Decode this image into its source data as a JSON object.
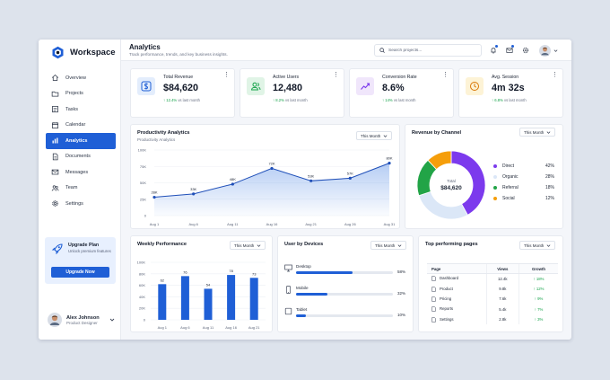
{
  "app": {
    "name": "Workspace"
  },
  "header": {
    "title": "Analytics",
    "subtitle": "Track performance, trends, and key business insights.",
    "search_placeholder": "Search projects..."
  },
  "sidebar": {
    "items": [
      {
        "label": "Overview",
        "icon": "home-icon"
      },
      {
        "label": "Projects",
        "icon": "folder-icon"
      },
      {
        "label": "Tasks",
        "icon": "checklist-icon"
      },
      {
        "label": "Calendar",
        "icon": "calendar-icon"
      },
      {
        "label": "Analytics",
        "icon": "bar-chart-icon",
        "active": true
      },
      {
        "label": "Documents",
        "icon": "document-icon"
      },
      {
        "label": "Messages",
        "icon": "mail-icon"
      },
      {
        "label": "Team",
        "icon": "team-icon"
      },
      {
        "label": "Settings",
        "icon": "gear-icon"
      }
    ],
    "upgrade": {
      "title": "Upgrade Plan",
      "subtitle": "Unlock premium features",
      "button": "Upgrade Now"
    },
    "user": {
      "name": "Alex Johnson",
      "role": "Product Designer"
    }
  },
  "stats": [
    {
      "label": "Total Revenue",
      "value": "$84,620",
      "change": "12.4%",
      "suffix": "vs last month",
      "icon": "dollar-icon",
      "bg": "#e3edfc",
      "color": "#1f5fd6"
    },
    {
      "label": "Active Users",
      "value": "12,480",
      "change": "8.2%",
      "suffix": "vs last month",
      "icon": "users-icon",
      "bg": "#e0f4e6",
      "color": "#16a34a"
    },
    {
      "label": "Conversion Rate",
      "value": "8.6%",
      "change": "14%",
      "suffix": "vs last month",
      "icon": "trend-icon",
      "bg": "#f0e6fb",
      "color": "#7c3aed"
    },
    {
      "label": "Avg. Session",
      "value": "4m 32s",
      "change": "6.8%",
      "suffix": "vs last month",
      "icon": "clock-icon",
      "bg": "#fdf3d6",
      "color": "#d97706"
    }
  ],
  "productivity": {
    "title": "Productivity Analytics",
    "subtitle": "Productivity Analytics",
    "filter": "This Month"
  },
  "revenue_channel": {
    "title": "Revenue by Channel",
    "filter": "This Month",
    "center_label": "Total",
    "center_value": "$84,620"
  },
  "weekly": {
    "title": "Weekly Performance",
    "filter": "This Month"
  },
  "devices": {
    "title": "User by Devices",
    "filter": "This Month",
    "items": [
      {
        "label": "Desktop",
        "pct": "58%",
        "value": 58,
        "icon": "monitor-icon"
      },
      {
        "label": "Mobile",
        "pct": "32%",
        "value": 32,
        "icon": "phone-icon"
      },
      {
        "label": "Tablet",
        "pct": "10%",
        "value": 10,
        "icon": "tablet-icon"
      }
    ]
  },
  "top_pages": {
    "title": "Top performing pages",
    "filter": "This Month",
    "headers": [
      "Page",
      "Views",
      "Growth"
    ],
    "rows": [
      {
        "page": "Dashboard",
        "views": "12.4k",
        "growth": "18%"
      },
      {
        "page": "Product",
        "views": "9.8k",
        "growth": "12%"
      },
      {
        "page": "Pricing",
        "views": "7.6k",
        "growth": "9%"
      },
      {
        "page": "Reports",
        "views": "5.4k",
        "growth": "7%"
      },
      {
        "page": "Settings",
        "views": "2.8k",
        "growth": "3%"
      }
    ]
  },
  "chart_data": [
    {
      "type": "area",
      "title": "Productivity Analytics",
      "x": [
        "Aug 1",
        "Aug 6",
        "Aug 11",
        "Aug 16",
        "Aug 21",
        "Aug 26",
        "Aug 31"
      ],
      "values": [
        28,
        33,
        48,
        72,
        53,
        57,
        80
      ],
      "value_labels": [
        "28K",
        "33K",
        "48K",
        "72K",
        "53K",
        "57K",
        "80K"
      ],
      "yticks": [
        "0",
        "25K",
        "50K",
        "75K",
        "100K"
      ],
      "ylim": [
        0,
        100
      ],
      "grid": true,
      "color": "#1f4fb8"
    },
    {
      "type": "pie",
      "title": "Revenue by Channel",
      "categories": [
        "Direct",
        "Organic",
        "Referral",
        "Social"
      ],
      "values": [
        42,
        28,
        18,
        12
      ],
      "labels": [
        "42%",
        "28%",
        "18%",
        "12%"
      ],
      "colors": [
        "#7c3aed",
        "#dbe7f7",
        "#22a447",
        "#f59e0b"
      ]
    },
    {
      "type": "bar",
      "title": "Weekly Performance",
      "categories": [
        "Aug 1",
        "Aug 6",
        "Aug 11",
        "Aug 16",
        "Aug 21"
      ],
      "values": [
        62,
        76,
        54,
        78,
        73
      ],
      "value_labels": [
        "62",
        "76",
        "54",
        "78",
        "73"
      ],
      "yticks": [
        "0",
        "20K",
        "40K",
        "60K",
        "80K",
        "100K"
      ],
      "ylim": [
        0,
        100
      ],
      "grid": true,
      "color": "#1f5fd6"
    }
  ]
}
